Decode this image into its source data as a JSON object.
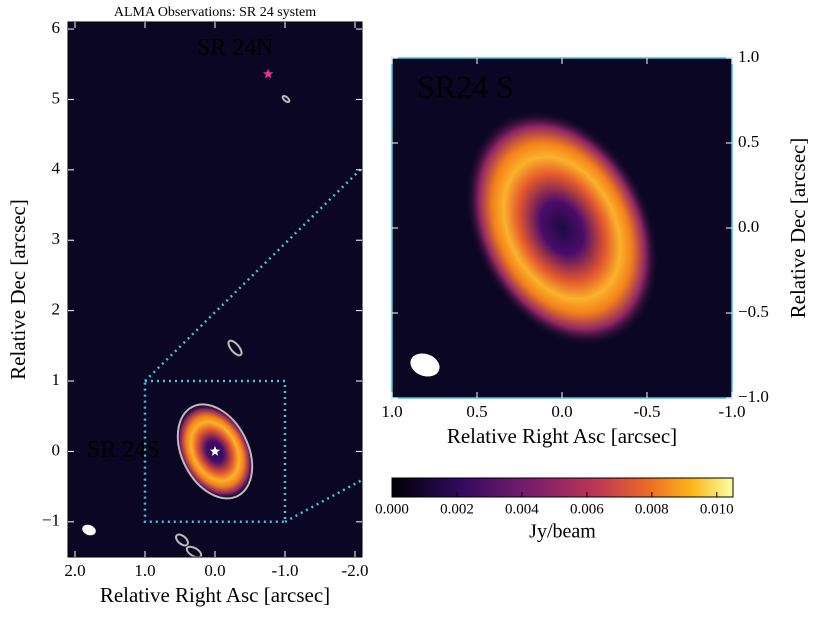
{
  "chart_data": [
    {
      "type": "image",
      "title": "ALMA Observations: SR 24 system",
      "xlabel": "Relative Right Asc [arcsec]",
      "ylabel": "Relative Dec [arcsec]",
      "xlim": [
        2.1,
        -2.1
      ],
      "ylim": [
        -1.5,
        6.1
      ],
      "xticks": [
        {
          "value": 2,
          "label": "2.0"
        },
        {
          "value": 1,
          "label": "1.0"
        },
        {
          "value": 0,
          "label": "0.0"
        },
        {
          "value": -1,
          "label": "-1.0"
        },
        {
          "value": -2,
          "label": "-2.0"
        }
      ],
      "yticks": [
        {
          "value": -1,
          "label": "−1"
        },
        0,
        1,
        2,
        3,
        4,
        5,
        6
      ],
      "annotations": [
        {
          "text": "SR 24N",
          "x": -0.29,
          "y": 5.71,
          "color": "#e8338a"
        },
        {
          "text": "SR 24S",
          "x": 1.31,
          "y": 0,
          "color": "#ffffff"
        }
      ],
      "markers": [
        {
          "x": -0.76,
          "y": 5.36,
          "color": "#e8338a"
        },
        {
          "x": 0,
          "y": 0,
          "color": "#ffffff"
        }
      ],
      "zoom_box": {
        "xlim": [
          1,
          -1
        ],
        "ylim": [
          -1,
          1
        ],
        "color": "#3fc6d6"
      }
    },
    {
      "type": "image",
      "title": "SR24 S",
      "xlabel": "Relative Right Asc [arcsec]",
      "ylabel": "Relative Dec [arcsec]",
      "xlim": [
        1,
        -1
      ],
      "ylim": [
        -1,
        1
      ],
      "xticks": [
        {
          "value": 1,
          "label": "1.0"
        },
        {
          "value": 0.5,
          "label": "0.5"
        },
        {
          "value": 0,
          "label": "0.0"
        },
        {
          "value": -0.5,
          "label": "-0.5"
        },
        {
          "value": -1,
          "label": "-1.0"
        }
      ],
      "yticks": [
        {
          "value": 1,
          "label": "1.0"
        },
        {
          "value": 0.5,
          "label": "0.5"
        },
        {
          "value": 0,
          "label": "0.0"
        },
        {
          "value": -0.5,
          "label": "−0.5"
        },
        {
          "value": -1,
          "label": "−1.0"
        }
      ]
    },
    {
      "type": "colorbar",
      "label": "Jy/beam",
      "xlim": [
        0,
        0.0105
      ],
      "xticks": [
        {
          "value": 0,
          "label": "0.000"
        },
        {
          "value": 0.002,
          "label": "0.002"
        },
        {
          "value": 0.004,
          "label": "0.004"
        },
        {
          "value": 0.006,
          "label": "0.006"
        },
        {
          "value": 0.008,
          "label": "0.008"
        },
        {
          "value": 0.01,
          "label": "0.010"
        }
      ]
    }
  ]
}
